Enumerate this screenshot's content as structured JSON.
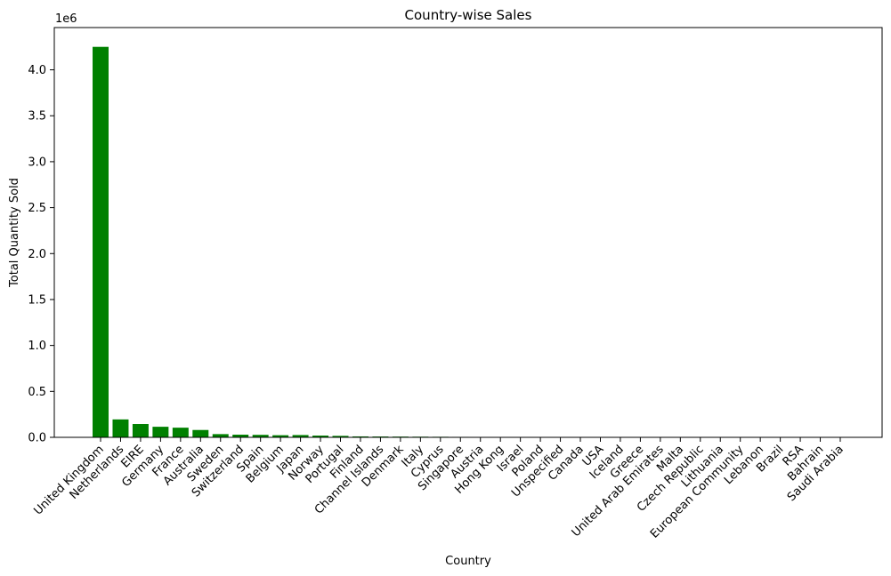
{
  "chart_data": {
    "type": "bar",
    "title": "Country-wise Sales",
    "xlabel": "Country",
    "ylabel": "Total Quantity Sold",
    "y_offset_label": "1e6",
    "ylim": [
      0,
      4.46
    ],
    "y_ticks": [
      0.0,
      0.5,
      1.0,
      1.5,
      2.0,
      2.5,
      3.0,
      3.5,
      4.0
    ],
    "y_tick_labels": [
      "0.0",
      "0.5",
      "1.0",
      "1.5",
      "2.0",
      "2.5",
      "3.0",
      "3.5",
      "4.0"
    ],
    "bar_color": "#008000",
    "categories": [
      "United Kingdom",
      "Netherlands",
      "EIRE",
      "Germany",
      "France",
      "Australia",
      "Sweden",
      "Switzerland",
      "Spain",
      "Belgium",
      "Japan",
      "Norway",
      "Portugal",
      "Finland",
      "Channel Islands",
      "Denmark",
      "Italy",
      "Cyprus",
      "Singapore",
      "Austria",
      "Hong Kong",
      "Israel",
      "Poland",
      "Unspecified",
      "Canada",
      "USA",
      "Iceland",
      "Greece",
      "United Arab Emirates",
      "Malta",
      "Czech Republic",
      "Lithuania",
      "European Community",
      "Lebanon",
      "Brazil",
      "RSA",
      "Bahrain",
      "Saudi Arabia"
    ],
    "values": [
      4.25,
      0.195,
      0.145,
      0.115,
      0.105,
      0.08,
      0.035,
      0.029,
      0.027,
      0.023,
      0.025,
      0.019,
      0.016,
      0.01,
      0.009,
      0.008,
      0.007,
      0.006,
      0.005,
      0.004,
      0.004,
      0.004,
      0.003,
      0.003,
      0.002,
      0.002,
      0.002,
      0.002,
      0.001,
      0.001,
      0.001,
      0.001,
      0.0005,
      0.0004,
      0.0004,
      0.0003,
      0.0003,
      0.0001
    ]
  }
}
